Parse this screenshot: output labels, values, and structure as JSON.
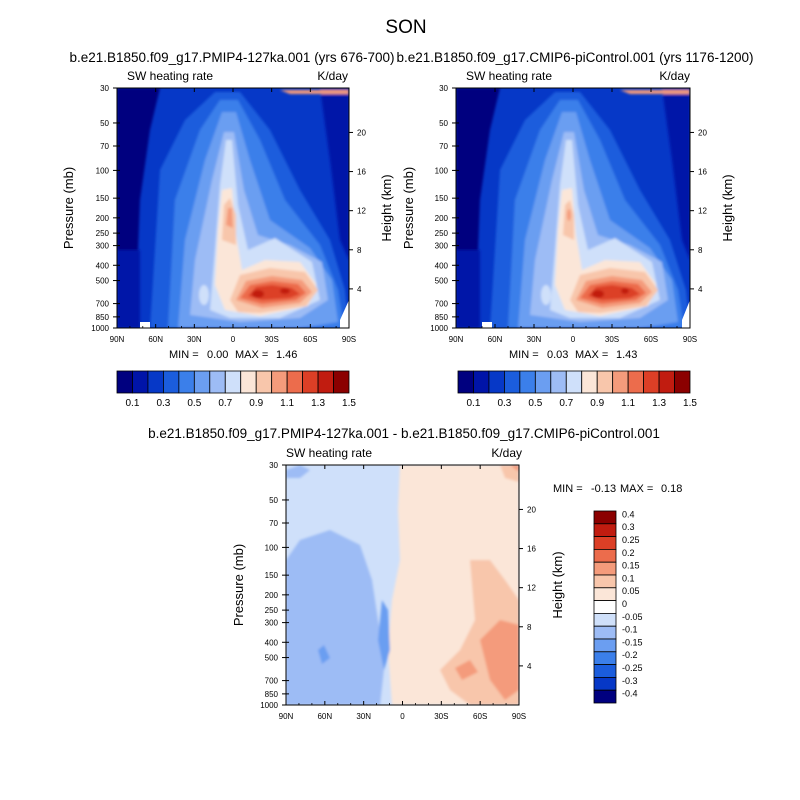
{
  "figure": {
    "title": "SON"
  },
  "chart_data": [
    {
      "type": "heatmap",
      "title": "b.e21.B1850.f09_g17.PMIP4-127ka.001 (yrs 676-700)",
      "left_label": "SW heating rate",
      "right_label": "K/day",
      "xlabel": "",
      "ylabel": "Pressure (mb)",
      "y2label": "Height (km)",
      "x_ticks": [
        "90N",
        "60N",
        "30N",
        "0",
        "30S",
        "60S",
        "90S"
      ],
      "y_ticks": [
        "30",
        "50",
        "70",
        "100",
        "150",
        "200",
        "250",
        "300",
        "400",
        "500",
        "700",
        "850",
        "1000"
      ],
      "y_tick_values": [
        30,
        50,
        70,
        100,
        150,
        200,
        250,
        300,
        400,
        500,
        700,
        850,
        1000
      ],
      "y2_ticks": [
        "20",
        "16",
        "12",
        "8",
        "4"
      ],
      "y2_tick_values": [
        20,
        16,
        12,
        8,
        4
      ],
      "stats": {
        "min_label": "MIN =",
        "min": "0.00",
        "max_label": "MAX =",
        "max": "1.46"
      },
      "colorbar": {
        "labels": [
          "0.1",
          "0.3",
          "0.5",
          "0.7",
          "0.9",
          "1.1",
          "1.3",
          "1.5"
        ],
        "colors": [
          "#00007f",
          "#0014a8",
          "#0638c7",
          "#1b5ddd",
          "#3b7fea",
          "#6b9ef1",
          "#9dbcf5",
          "#cfe0fa",
          "#fbe6d8",
          "#f8c6ab",
          "#f49b7b",
          "#ec6c4c",
          "#dc3f26",
          "#c11c10",
          "#8b0000"
        ]
      }
    },
    {
      "type": "heatmap",
      "title": "b.e21.B1850.f09_g17.CMIP6-piControl.001 (yrs 1176-1200)",
      "left_label": "SW heating rate",
      "right_label": "K/day",
      "xlabel": "",
      "ylabel": "Pressure (mb)",
      "y2label": "Height (km)",
      "x_ticks": [
        "90N",
        "60N",
        "30N",
        "0",
        "30S",
        "60S",
        "90S"
      ],
      "y_ticks": [
        "30",
        "50",
        "70",
        "100",
        "150",
        "200",
        "250",
        "300",
        "400",
        "500",
        "700",
        "850",
        "1000"
      ],
      "y_tick_values": [
        30,
        50,
        70,
        100,
        150,
        200,
        250,
        300,
        400,
        500,
        700,
        850,
        1000
      ],
      "y2_ticks": [
        "20",
        "16",
        "12",
        "8",
        "4"
      ],
      "y2_tick_values": [
        20,
        16,
        12,
        8,
        4
      ],
      "stats": {
        "min_label": "MIN =",
        "min": "0.03",
        "max_label": "MAX =",
        "max": "1.43"
      },
      "colorbar": {
        "labels": [
          "0.1",
          "0.3",
          "0.5",
          "0.7",
          "0.9",
          "1.1",
          "1.3",
          "1.5"
        ],
        "colors": [
          "#00007f",
          "#0014a8",
          "#0638c7",
          "#1b5ddd",
          "#3b7fea",
          "#6b9ef1",
          "#9dbcf5",
          "#cfe0fa",
          "#fbe6d8",
          "#f8c6ab",
          "#f49b7b",
          "#ec6c4c",
          "#dc3f26",
          "#c11c10",
          "#8b0000"
        ]
      }
    },
    {
      "type": "heatmap",
      "title": "b.e21.B1850.f09_g17.PMIP4-127ka.001 - b.e21.B1850.f09_g17.CMIP6-piControl.001",
      "left_label": "SW heating rate",
      "right_label": "K/day",
      "xlabel": "",
      "ylabel": "Pressure (mb)",
      "y2label": "Height (km)",
      "x_ticks": [
        "90N",
        "60N",
        "30N",
        "0",
        "30S",
        "60S",
        "90S"
      ],
      "y_ticks": [
        "30",
        "50",
        "70",
        "100",
        "150",
        "200",
        "250",
        "300",
        "400",
        "500",
        "700",
        "850",
        "1000"
      ],
      "y_tick_values": [
        30,
        50,
        70,
        100,
        150,
        200,
        250,
        300,
        400,
        500,
        700,
        850,
        1000
      ],
      "y2_ticks": [
        "20",
        "16",
        "12",
        "8",
        "4"
      ],
      "y2_tick_values": [
        20,
        16,
        12,
        8,
        4
      ],
      "stats": {
        "min_label": "MIN =",
        "min": "-0.13",
        "max_label": "MAX =",
        "max": "0.18"
      },
      "colorbar": {
        "labels": [
          "0.4",
          "0.3",
          "0.25",
          "0.2",
          "0.15",
          "0.1",
          "0.05",
          "0",
          "-0.05",
          "-0.1",
          "-0.15",
          "-0.2",
          "-0.25",
          "-0.3",
          "-0.4"
        ],
        "colors": [
          "#8b0000",
          "#c11c10",
          "#dc3f26",
          "#ec6c4c",
          "#f49b7b",
          "#f8c6ab",
          "#fbe6d8",
          "#ffffff",
          "#cfe0fa",
          "#9dbcf5",
          "#6b9ef1",
          "#3b7fea",
          "#1b5ddd",
          "#0638c7",
          "#00007f"
        ]
      }
    }
  ]
}
